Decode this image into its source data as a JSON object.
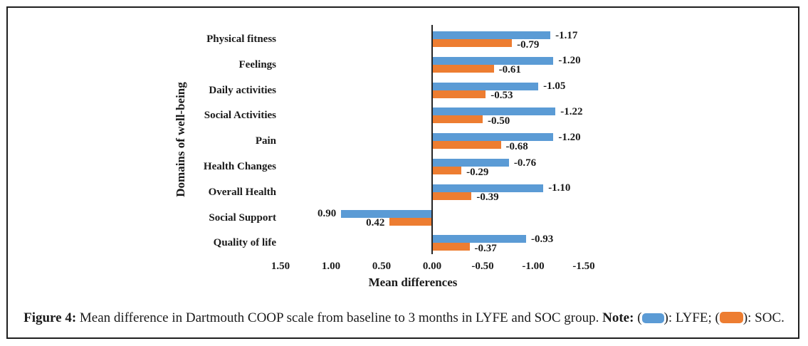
{
  "caption": {
    "label": "Figure 4:",
    "body": " Mean difference in Dartmouth COOP scale from baseline to 3 months in LYFE and SOC group. ",
    "note_label": "Note:",
    "note_open": " (",
    "note_between": "): LYFE; (",
    "note_close": "): SOC."
  },
  "chart_data": {
    "type": "bar",
    "orientation": "horizontal",
    "title": "",
    "xlabel": "Mean differences",
    "ylabel": "Domains of well-being",
    "categories": [
      "Physical fitness",
      "Feelings",
      "Daily activities",
      "Social Activities",
      "Pain",
      "Health Changes",
      "Overall Health",
      "Social Support",
      "Quality of life"
    ],
    "series": [
      {
        "name": "LYFE",
        "color": "#5B9BD5",
        "values": [
          -1.17,
          -1.2,
          -1.05,
          -1.22,
          -1.2,
          -0.76,
          -1.1,
          0.9,
          -0.93
        ]
      },
      {
        "name": "SOC",
        "color": "#ED7D31",
        "values": [
          -0.79,
          -0.61,
          -0.53,
          -0.5,
          -0.68,
          -0.29,
          -0.39,
          0.42,
          -0.37
        ]
      }
    ],
    "value_labels": [
      [
        "-1.17",
        "-1.20",
        "-1.05",
        "-1.22",
        "-1.20",
        "-0.76",
        "-1.10",
        "0.90",
        "-0.93"
      ],
      [
        "-0.79",
        "-0.61",
        "-0.53",
        "-0.50",
        "-0.68",
        "-0.29",
        "-0.39",
        "0.42",
        "-0.37"
      ]
    ],
    "x_ticks": [
      "1.50",
      "1.00",
      "0.50",
      "0.00",
      "-0.50",
      "-1.00",
      "-1.50"
    ],
    "x_tick_values": [
      1.5,
      1.0,
      0.5,
      0.0,
      -0.5,
      -1.0,
      -1.5
    ],
    "axis_reversed": true,
    "xlim": [
      1.75,
      -1.75
    ],
    "grid": false,
    "legend_position": "in-caption",
    "axis_color": "#262626"
  }
}
